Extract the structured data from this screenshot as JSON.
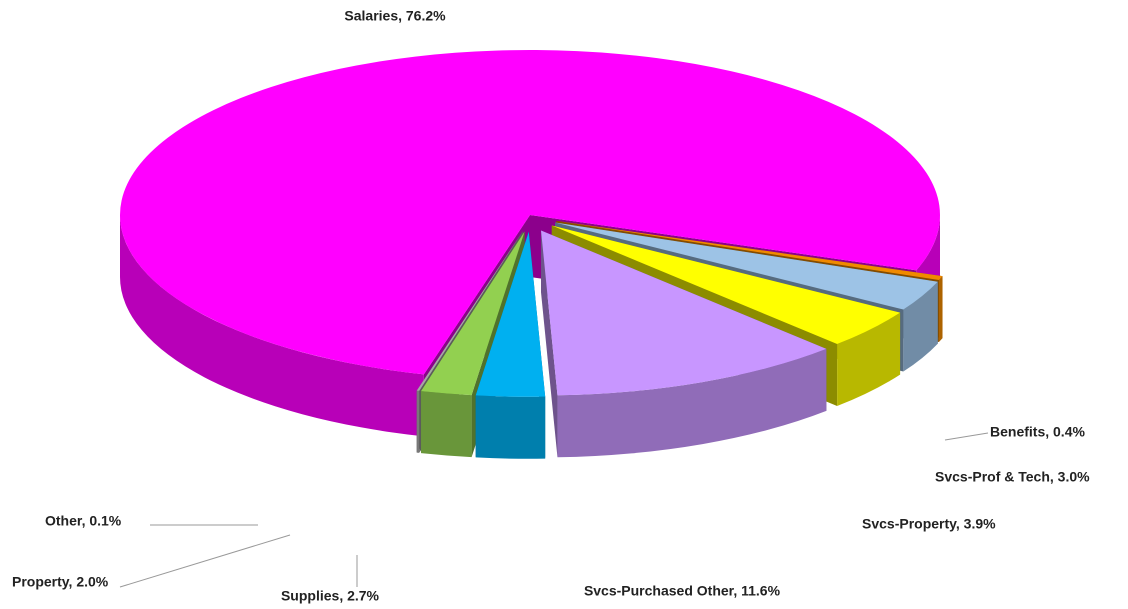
{
  "chart_data": {
    "type": "pie",
    "values": [
      76.2,
      0.4,
      3.0,
      3.9,
      11.6,
      2.7,
      2.0,
      0.1
    ],
    "value_labels": [
      "Salaries, 76.2%",
      "Benefits, 0.4%",
      "Svcs-Prof & Tech, 3.0%",
      "Svcs-Property, 3.9%",
      "Svcs-Purchased Other, 11.6%",
      "Supplies, 2.7%",
      "Property, 2.0%",
      "Other, 0.1%"
    ],
    "colors": [
      "#ff00ff",
      "#f08a00",
      "#9dc3e6",
      "#ffff00",
      "#c896ff",
      "#00b0f0",
      "#92d050",
      "#a6a6a6"
    ]
  }
}
